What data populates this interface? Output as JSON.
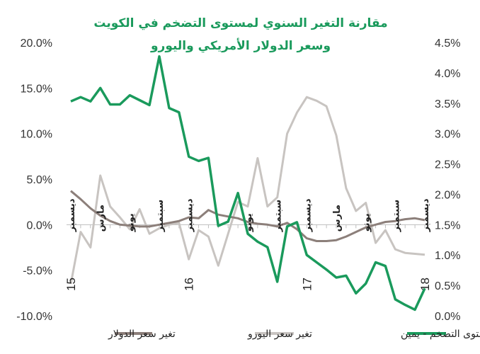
{
  "chart_data": {
    "type": "line",
    "title_line1": "مقارنة التغير السنوي لمستوى التضخم في الكويت",
    "title_line2": "وسعر الدولار الأمريكي واليورو",
    "left_axis": {
      "ylim": [
        -10,
        20
      ],
      "ticks": [
        "20.0%",
        "15.0%",
        "10.0%",
        "5.0%",
        "0.0%",
        "-5.0%",
        "-10.0%"
      ]
    },
    "right_axis": {
      "ylim": [
        0,
        4.5
      ],
      "ticks": [
        "4.5%",
        "4.0%",
        "3.5%",
        "3.0%",
        "2.5%",
        "2.0%",
        "1.5%",
        "1.0%",
        "0.5%",
        "0.0%"
      ]
    },
    "x_month_labels": [
      {
        "i": 0,
        "label": "ديسمبر"
      },
      {
        "i": 3,
        "label": "مارس"
      },
      {
        "i": 6,
        "label": "يونو"
      },
      {
        "i": 9,
        "label": "سبتمبر"
      },
      {
        "i": 12,
        "label": "ديسمبر"
      },
      {
        "i": 18,
        "label": "يونو"
      },
      {
        "i": 21,
        "label": "سبتمبر"
      },
      {
        "i": 24,
        "label": "ديسمبر"
      },
      {
        "i": 27,
        "label": "مارس"
      },
      {
        "i": 30,
        "label": "يونو"
      },
      {
        "i": 33,
        "label": "سبتمبر"
      },
      {
        "i": 36,
        "label": "ديسمبر"
      }
    ],
    "x_year_labels": [
      {
        "i": 0,
        "label": "15"
      },
      {
        "i": 12,
        "label": "16"
      },
      {
        "i": 24,
        "label": "17"
      },
      {
        "i": 36,
        "label": "18"
      }
    ],
    "series": [
      {
        "name": "تغير سعر الدولار",
        "axis": "left",
        "color": "#8c7f7a",
        "values": [
          3.7,
          2.8,
          1.8,
          1.0,
          0.4,
          0.0,
          -0.1,
          -0.2,
          -0.2,
          0.0,
          0.2,
          0.4,
          0.8,
          0.7,
          1.6,
          1.1,
          0.9,
          0.7,
          0.3,
          0.1,
          0.0,
          -0.2,
          0.2,
          -0.5,
          -1.5,
          -1.8,
          -1.8,
          -1.7,
          -1.3,
          -0.8,
          -0.3,
          0.0,
          0.3,
          0.4,
          0.6,
          0.7,
          0.5
        ]
      },
      {
        "name": "تغير سعر اليورو",
        "axis": "left",
        "color": "#c8c4c1",
        "values": [
          -6.5,
          -0.8,
          -2.5,
          5.4,
          2.0,
          0.8,
          -0.5,
          1.7,
          -1.0,
          -0.4,
          0.0,
          0.2,
          -3.8,
          -0.6,
          -1.3,
          -4.5,
          -1.0,
          2.5,
          2.0,
          7.3,
          2.0,
          3.0,
          10.0,
          12.3,
          14.0,
          13.6,
          13.0,
          9.8,
          4.0,
          1.5,
          2.4,
          -2.0,
          -0.6,
          -2.7,
          -3.1,
          -3.2,
          -3.3
        ]
      },
      {
        "name": "مستوى التضخم - يمين",
        "axis": "right",
        "color": "#1a9a5c",
        "values": [
          3.53,
          3.6,
          3.53,
          3.75,
          3.48,
          3.48,
          3.63,
          3.55,
          3.47,
          4.27,
          3.42,
          3.35,
          2.62,
          2.55,
          2.6,
          1.48,
          1.55,
          2.02,
          1.35,
          1.22,
          1.13,
          0.56,
          1.47,
          1.54,
          1.0,
          0.88,
          0.76,
          0.63,
          0.66,
          0.37,
          0.53,
          0.88,
          0.82,
          0.27,
          0.18,
          0.1,
          0.45
        ]
      }
    ],
    "legend": [
      {
        "label": "مستوى التضخم - يمين",
        "color": "#1a9a5c"
      },
      {
        "label": "تغير سعر اليورو",
        "color": "#c8c4c1"
      },
      {
        "label": "تغير سعر الدولار",
        "color": "#8c7f7a"
      }
    ]
  }
}
